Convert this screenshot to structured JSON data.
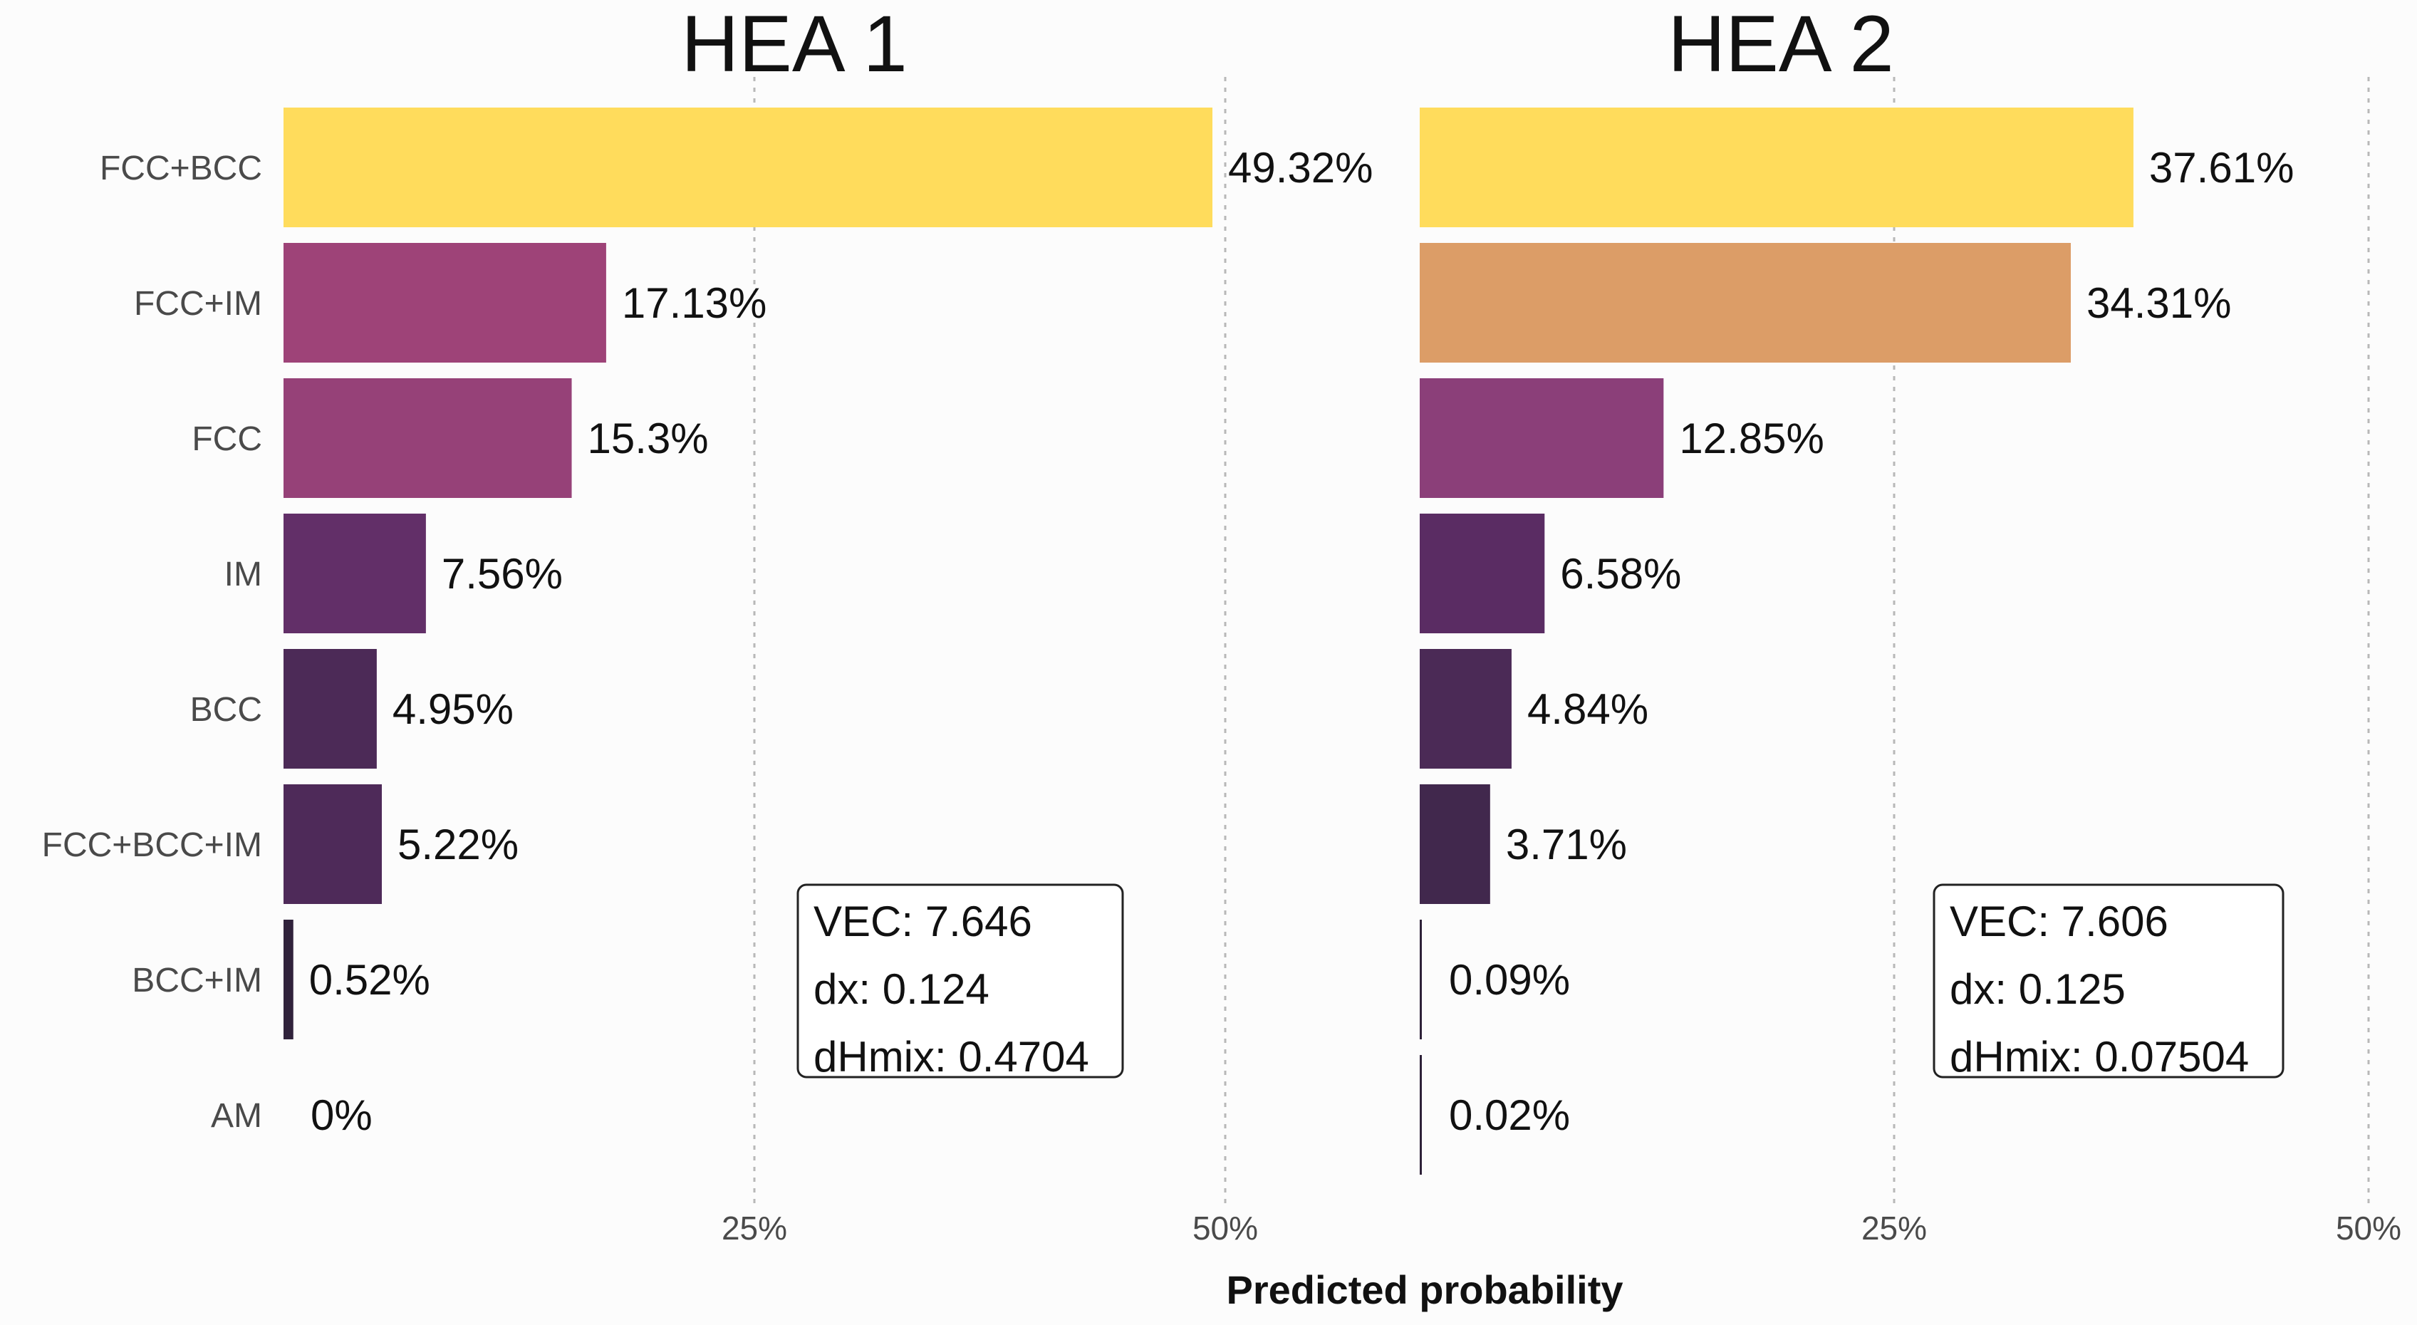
{
  "chart_data": {
    "type": "bar",
    "orientation": "horizontal",
    "xlabel": "Predicted probability",
    "xlim": [
      0,
      50
    ],
    "xticks": [
      25,
      50
    ],
    "xtick_labels": [
      "25%",
      "50%"
    ],
    "grid": "vertical dotted",
    "categories": [
      "FCC+BCC",
      "FCC+IM",
      "FCC",
      "IM",
      "BCC",
      "FCC+BCC+IM",
      "BCC+IM",
      "AM"
    ],
    "panels": [
      {
        "title": "HEA 1",
        "values": [
          49.32,
          17.13,
          15.3,
          7.56,
          4.95,
          5.22,
          0.52,
          0
        ],
        "value_labels": [
          "49.32%",
          "17.13%",
          "15.3%",
          "7.56%",
          "4.95%",
          "5.22%",
          "0.52%",
          "0%"
        ],
        "annotation": [
          "VEC: 7.646",
          "dx: 0.124",
          "dHmix: 0.4704"
        ]
      },
      {
        "title": "HEA 2",
        "values": [
          37.61,
          34.31,
          12.85,
          6.58,
          4.84,
          3.71,
          0.09,
          0.02
        ],
        "value_labels": [
          "37.61%",
          "34.31%",
          "12.85%",
          "6.58%",
          "4.84%",
          "3.71%",
          "0.09%",
          "0.02%"
        ],
        "annotation": [
          "VEC: 7.606",
          "dx: 0.125",
          "dHmix: 0.07504"
        ]
      }
    ],
    "color_scale": [
      [
        0,
        "#2e2138"
      ],
      [
        3,
        "#3b2748"
      ],
      [
        7,
        "#5e2d66"
      ],
      [
        13,
        "#8c3f79"
      ],
      [
        20,
        "#ab4577"
      ],
      [
        32,
        "#ad4675"
      ],
      [
        36,
        "#ffdc5c"
      ]
    ]
  }
}
